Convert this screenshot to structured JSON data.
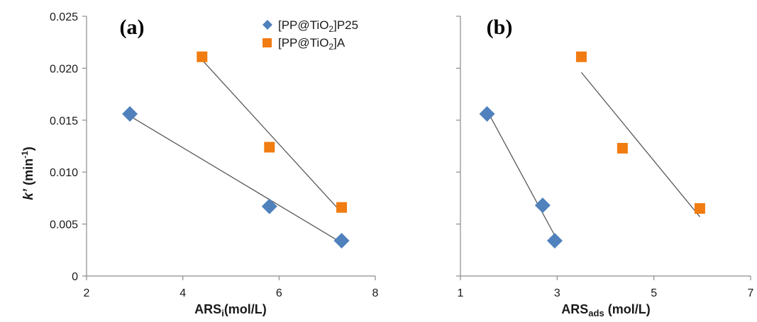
{
  "y_axis": {
    "label_main": "k’",
    "label_unit_open": " (min",
    "label_unit_sup": "-1",
    "label_unit_close": ")"
  },
  "legend": {
    "entries": [
      {
        "pre": "[PP@TiO",
        "sub": "2",
        "post": "]P25",
        "marker": "diamond",
        "color": "#4f81bd"
      },
      {
        "pre": "[PP@TiO",
        "sub": "2",
        "post": "]A",
        "marker": "square",
        "color": "#f07c12"
      }
    ]
  },
  "chart_data": [
    {
      "type": "scatter",
      "panel_label": "(a)",
      "xlabel": {
        "main": "ARS",
        "sub": "i",
        "rest": "(mol/L)"
      },
      "xlim": [
        2,
        8
      ],
      "xticks": [
        "2",
        "4",
        "6",
        "8"
      ],
      "ylim": [
        0,
        0.025
      ],
      "yticks": [
        "0",
        "0.005",
        "0.010",
        "0.015",
        "0.020",
        "0.025"
      ],
      "grid": false,
      "legend_position": "top-right",
      "series": [
        {
          "name": "[PP@TiO2]P25",
          "marker": "diamond",
          "color": "#4f81bd",
          "x": [
            2.9,
            5.8,
            7.3
          ],
          "y": [
            0.0156,
            0.0067,
            0.0034
          ],
          "trendline": {
            "x": [
              2.9,
              7.3
            ],
            "y": [
              0.0154,
              0.0032
            ]
          }
        },
        {
          "name": "[PP@TiO2]A",
          "marker": "square",
          "color": "#f07c12",
          "x": [
            4.4,
            5.8,
            7.3
          ],
          "y": [
            0.0211,
            0.0124,
            0.0066
          ],
          "trendline": {
            "x": [
              4.4,
              7.3
            ],
            "y": [
              0.0208,
              0.0061
            ]
          }
        }
      ]
    },
    {
      "type": "scatter",
      "panel_label": "(b)",
      "xlabel": {
        "main": "ARS",
        "sub": "ads",
        "rest": " (mol/L)"
      },
      "xlim": [
        1,
        7
      ],
      "xticks": [
        "1",
        "3",
        "5",
        "7"
      ],
      "ylim": [
        0,
        0.025
      ],
      "yticks": [],
      "grid": false,
      "series": [
        {
          "name": "[PP@TiO2]P25",
          "marker": "diamond",
          "color": "#4f81bd",
          "x": [
            1.55,
            2.7,
            2.95
          ],
          "y": [
            0.0156,
            0.0068,
            0.0034
          ],
          "trendline": {
            "x": [
              1.6,
              2.95
            ],
            "y": [
              0.0155,
              0.0039
            ]
          }
        },
        {
          "name": "[PP@TiO2]A",
          "marker": "square",
          "color": "#f07c12",
          "x": [
            3.5,
            4.35,
            5.95
          ],
          "y": [
            0.0211,
            0.0123,
            0.0065
          ],
          "trendline": {
            "x": [
              3.5,
              5.95
            ],
            "y": [
              0.0196,
              0.0057
            ]
          }
        }
      ]
    }
  ]
}
